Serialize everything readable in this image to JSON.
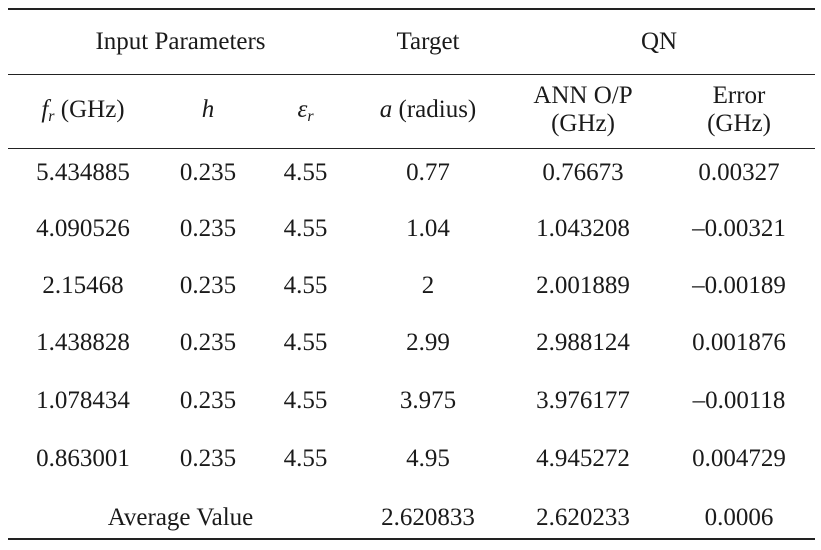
{
  "group_headers": {
    "input_parameters": "Input Parameters",
    "target": "Target",
    "qn": "QN"
  },
  "column_headers": {
    "fr_symbol": "f",
    "fr_sub": "r",
    "fr_unit": " (GHz)",
    "h": "h",
    "er_symbol": "ε",
    "er_sub": "r",
    "a_symbol": "a",
    "a_unit": " (radius)",
    "ann_line1": "ANN O/P",
    "ann_line2": "(GHz)",
    "err_line1": "Error",
    "err_line2": "(GHz)"
  },
  "rows": [
    [
      "5.434885",
      "0.235",
      "4.55",
      "0.77",
      "0.76673",
      "0.00327"
    ],
    [
      "4.090526",
      "0.235",
      "4.55",
      "1.04",
      "1.043208",
      "–0.00321"
    ],
    [
      "2.15468",
      "0.235",
      "4.55",
      "2",
      "2.001889",
      "–0.00189"
    ],
    [
      "1.438828",
      "0.235",
      "4.55",
      "2.99",
      "2.988124",
      "0.001876"
    ],
    [
      "1.078434",
      "0.235",
      "4.55",
      "3.975",
      "3.976177",
      "–0.00118"
    ],
    [
      "0.863001",
      "0.235",
      "4.55",
      "4.95",
      "4.945272",
      "0.004729"
    ]
  ],
  "average": {
    "label": "Average Value",
    "target": "2.620833",
    "ann": "2.620233",
    "error": "0.0006"
  }
}
